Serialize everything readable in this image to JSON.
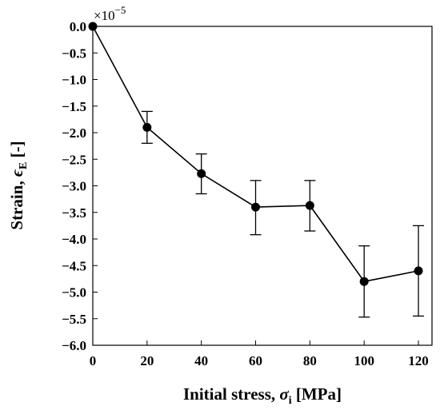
{
  "chart_data": {
    "type": "line",
    "x": [
      0,
      20,
      40,
      60,
      80,
      100,
      120
    ],
    "y": [
      0.0,
      -1.9,
      -2.77,
      -3.4,
      -3.37,
      -4.8,
      -4.6
    ],
    "error_low": [
      0.0,
      -2.2,
      -3.15,
      -3.92,
      -3.85,
      -5.47,
      -5.45
    ],
    "error_high": [
      0.0,
      -1.6,
      -2.4,
      -2.9,
      -2.9,
      -4.13,
      -3.75
    ],
    "xlim": [
      0,
      125
    ],
    "ylim": [
      -6.0,
      0.0
    ],
    "xticks": [
      0,
      20,
      40,
      60,
      80,
      100,
      120
    ],
    "xtick_labels": [
      "0",
      "20",
      "40",
      "60",
      "80",
      "100",
      "120"
    ],
    "yticks": [
      0.0,
      -0.5,
      -1.0,
      -1.5,
      -2.0,
      -2.5,
      -3.0,
      -3.5,
      -4.0,
      -4.5,
      -5.0,
      -5.5,
      -6.0
    ],
    "ytick_labels": [
      "0.0",
      "−0.5",
      "−1.0",
      "−1.5",
      "−2.0",
      "−2.5",
      "−3.0",
      "−3.5",
      "−4.0",
      "−4.5",
      "−5.0",
      "−5.5",
      "−6.0"
    ],
    "y_multiplier": {
      "base": "×10",
      "exponent": "−5"
    },
    "xlabel": {
      "main": "Initial stress, ",
      "symbol": "σ",
      "sub": "i",
      "unit": " [MPa]"
    },
    "ylabel": {
      "main": "Strain, ",
      "symbol": "ϵ",
      "sub": "E",
      "unit": " [-]"
    },
    "grid": false,
    "line_color": "#000000",
    "marker_color": "#000000"
  }
}
